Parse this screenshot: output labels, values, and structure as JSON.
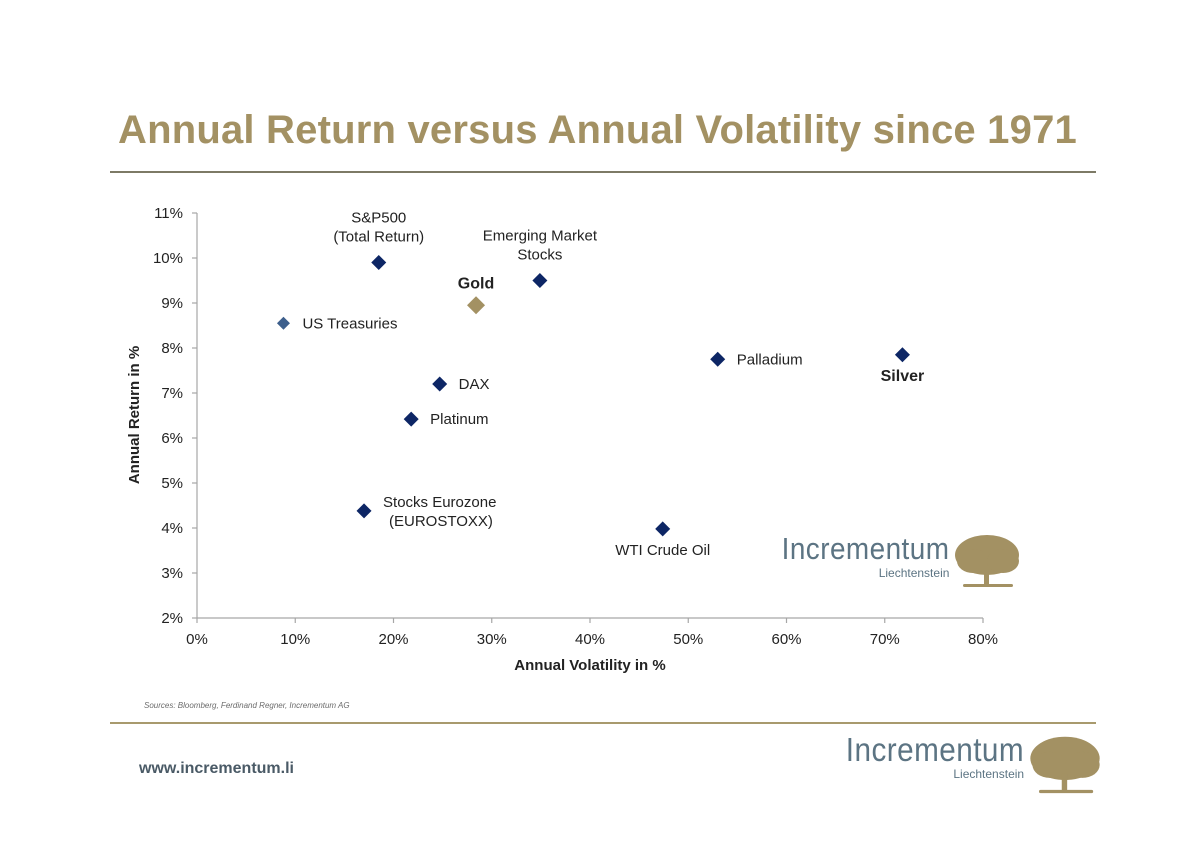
{
  "page": {
    "title": "Annual Return versus Annual Volatility since 1971",
    "sources": "Sources: Bloomberg, Ferdinand Regner, Incrementum AG",
    "url": "www.incrementum.li",
    "logo": {
      "name": "Incrementum",
      "subtitle": "Liechtenstein",
      "icon": "tree-icon",
      "text_color": "#5c7483",
      "icon_color": "#a39163"
    },
    "colors": {
      "title": "#a39163",
      "marker_default": "#0d2665",
      "marker_treasuries": "#3d5f8c",
      "marker_gold": "#a39163"
    }
  },
  "chart_data": {
    "type": "scatter",
    "title": "Annual Return versus Annual Volatility since 1971",
    "xlabel": "Annual Volatility  in %",
    "ylabel": "Annual Return in %",
    "xlim": [
      0,
      80
    ],
    "ylim": [
      2,
      11
    ],
    "x_ticks": [
      "0%",
      "10%",
      "20%",
      "30%",
      "40%",
      "50%",
      "60%",
      "70%",
      "80%"
    ],
    "y_ticks": [
      "2%",
      "3%",
      "4%",
      "5%",
      "6%",
      "7%",
      "8%",
      "9%",
      "10%",
      "11%"
    ],
    "grid": false,
    "legend": "none",
    "points": [
      {
        "name": "S&P500 (Total Return)",
        "label_lines": [
          "S&P500",
          "(Total Return)"
        ],
        "x": 18.5,
        "y": 9.9,
        "color": "#0d2665",
        "bold": false,
        "label_pos": "above"
      },
      {
        "name": "Emerging Market Stocks",
        "label_lines": [
          "Emerging  Market",
          "Stocks"
        ],
        "x": 34.9,
        "y": 9.5,
        "color": "#0d2665",
        "bold": false,
        "label_pos": "above"
      },
      {
        "name": "Gold",
        "label_lines": [
          "Gold"
        ],
        "x": 28.4,
        "y": 8.95,
        "color": "#a39163",
        "bold": true,
        "label_pos": "above"
      },
      {
        "name": "US Treasuries",
        "label_lines": [
          "US Treasuries"
        ],
        "x": 8.8,
        "y": 8.55,
        "color": "#3d5f8c",
        "bold": false,
        "label_pos": "right"
      },
      {
        "name": "Palladium",
        "label_lines": [
          "Palladium"
        ],
        "x": 53.0,
        "y": 7.75,
        "color": "#0d2665",
        "bold": false,
        "label_pos": "right"
      },
      {
        "name": "Silver",
        "label_lines": [
          "Silver"
        ],
        "x": 71.8,
        "y": 7.85,
        "color": "#0d2665",
        "bold": true,
        "label_pos": "below"
      },
      {
        "name": "DAX",
        "label_lines": [
          "DAX"
        ],
        "x": 24.7,
        "y": 7.2,
        "color": "#0d2665",
        "bold": false,
        "label_pos": "right"
      },
      {
        "name": "Platinum",
        "label_lines": [
          "Platinum"
        ],
        "x": 21.8,
        "y": 6.42,
        "color": "#0d2665",
        "bold": false,
        "label_pos": "right"
      },
      {
        "name": "Stocks Eurozone (EUROSTOXX)",
        "label_lines": [
          "Stocks Eurozone",
          "(EUROSTOXX)"
        ],
        "x": 17.0,
        "y": 4.38,
        "color": "#0d2665",
        "bold": false,
        "label_pos": "right"
      },
      {
        "name": "WTI Crude Oil",
        "label_lines": [
          "WTI Crude Oil"
        ],
        "x": 47.4,
        "y": 3.98,
        "color": "#0d2665",
        "bold": false,
        "label_pos": "below"
      }
    ]
  }
}
